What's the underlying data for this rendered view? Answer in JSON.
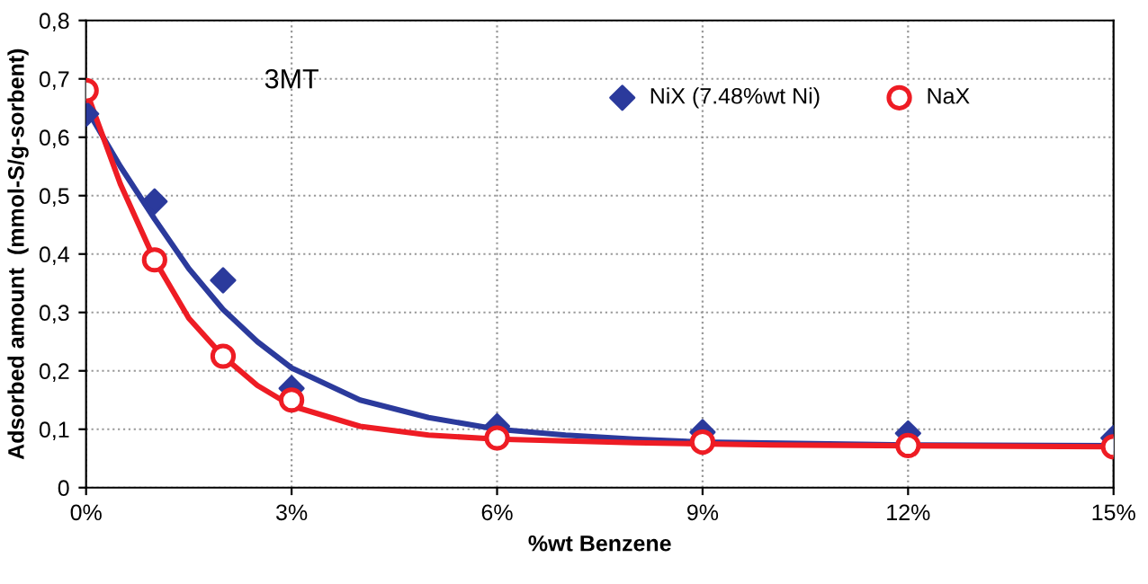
{
  "chart_data": {
    "type": "scatter",
    "xlabel": "%wt Benzene",
    "ylabel": "Adsorbed amount  (mmol-S/g-sorbent)",
    "annotations": [
      "3MT"
    ],
    "xlim": [
      0,
      15
    ],
    "ylim": [
      0,
      0.8
    ],
    "xticks": [
      {
        "value": 0,
        "label": "0%"
      },
      {
        "value": 3,
        "label": "3%"
      },
      {
        "value": 6,
        "label": "6%"
      },
      {
        "value": 9,
        "label": "9%"
      },
      {
        "value": 12,
        "label": "12%"
      },
      {
        "value": 15,
        "label": "15%"
      }
    ],
    "yticks": [
      0,
      {
        "value": 0.1,
        "label": "0,1"
      },
      {
        "value": 0.2,
        "label": "0,2"
      },
      {
        "value": 0.3,
        "label": "0,3"
      },
      {
        "value": 0.4,
        "label": "0,4"
      },
      {
        "value": 0.5,
        "label": "0,5"
      },
      {
        "value": 0.6,
        "label": "0,6"
      },
      {
        "value": 0.7,
        "label": "0,7"
      },
      {
        "value": 0.8,
        "label": "0,8"
      }
    ],
    "grid": true,
    "legend": "top right",
    "series": [
      {
        "type": "line",
        "color": "#2b3a9c",
        "marker": "none",
        "x": [
          0,
          0.5,
          1,
          1.5,
          2,
          2.5,
          3,
          4,
          5,
          6,
          7,
          8,
          9,
          12,
          15
        ],
        "values": [
          0.65,
          0.55,
          0.46,
          0.375,
          0.305,
          0.25,
          0.205,
          0.15,
          0.12,
          0.1,
          0.09,
          0.083,
          0.078,
          0.073,
          0.072
        ]
      },
      {
        "type": "line",
        "color": "#ee1c24",
        "marker": "none",
        "x": [
          0,
          0.5,
          1,
          1.5,
          2,
          2.5,
          3,
          4,
          5,
          6,
          8,
          10,
          15
        ],
        "values": [
          0.68,
          0.52,
          0.39,
          0.29,
          0.225,
          0.175,
          0.14,
          0.105,
          0.09,
          0.083,
          0.077,
          0.073,
          0.07
        ]
      },
      {
        "name": "NiX (7.48%wt Ni)",
        "marker": "diamond",
        "color": "#2b3a9c",
        "x": [
          0,
          1,
          2,
          3,
          6,
          9,
          12,
          15
        ],
        "values": [
          0.64,
          0.49,
          0.355,
          0.17,
          0.105,
          0.095,
          0.093,
          0.085
        ]
      },
      {
        "name": "NaX",
        "marker": "circle",
        "color": "#ee1c24",
        "x": [
          0,
          1,
          2,
          3,
          6,
          9,
          12,
          15
        ],
        "values": [
          0.68,
          0.39,
          0.225,
          0.15,
          0.085,
          0.078,
          0.072,
          0.07
        ]
      }
    ]
  }
}
